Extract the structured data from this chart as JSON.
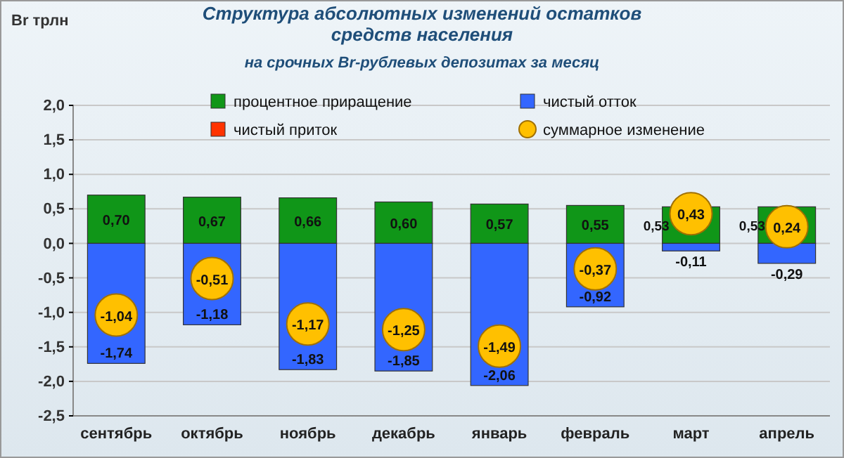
{
  "chart_data": {
    "type": "bar",
    "title": "Структура абсолютных изменений остатков средств населения",
    "subtitle": "на срочных Br-рублевых депозитах за месяц",
    "ylabel": "Br трлн",
    "categories": [
      "сентябрь",
      "октябрь",
      "ноябрь",
      "декабрь",
      "январь",
      "февраль",
      "март",
      "апрель"
    ],
    "stacked": true,
    "grid": "y",
    "legend": "top",
    "ylim": [
      -2.5,
      2.0
    ],
    "yticks": [
      {
        "value": -2.5,
        "label": "-2,5"
      },
      {
        "value": -2,
        "label": "-2,0"
      },
      {
        "value": -1.5,
        "label": "-1,5"
      },
      {
        "value": -1,
        "label": "-1,0"
      },
      {
        "value": -0.5,
        "label": "-0,5"
      },
      {
        "value": 0,
        "label": "0,0"
      },
      {
        "value": 0.5,
        "label": "0,5"
      },
      {
        "value": 1,
        "label": "1,0"
      },
      {
        "value": 1.5,
        "label": "1,5"
      },
      {
        "value": 2,
        "label": "2,0"
      }
    ],
    "series": [
      {
        "name": "процентное приращение",
        "color": "#109618",
        "values": [
          0.7,
          0.67,
          0.66,
          0.6,
          0.57,
          0.55,
          0.53,
          0.53
        ],
        "value_labels": [
          "0,70",
          "0,67",
          "0,66",
          "0,60",
          "0,57",
          "0,55",
          "0,53",
          "0,53"
        ]
      },
      {
        "name": "чистый отток",
        "color": "#3366ff",
        "values": [
          -1.74,
          -1.18,
          -1.83,
          -1.85,
          -2.06,
          -0.92,
          -0.11,
          -0.29
        ],
        "value_labels": [
          "-1,74",
          "-1,18",
          "-1,83",
          "-1,85",
          "-2,06",
          "-0,92",
          "-0,11",
          "-0,29"
        ]
      },
      {
        "name": "чистый приток",
        "color": "#ff3300",
        "values": [
          null,
          null,
          null,
          null,
          null,
          null,
          null,
          null
        ]
      },
      {
        "name": "суммарное изменение",
        "type": "scatter",
        "marker": "circle",
        "color": "#ffc000",
        "x": [
          "сентябрь",
          "октябрь",
          "ноябрь",
          "декабрь",
          "январь",
          "февраль",
          "март",
          "апрель"
        ],
        "values": [
          -1.04,
          -0.51,
          -1.17,
          -1.25,
          -1.49,
          -0.37,
          0.43,
          0.24
        ],
        "value_labels": [
          "-1,04",
          "-0,51",
          "-1,17",
          "-1,25",
          "-1,49",
          "-0,37",
          "0,43",
          "0,24"
        ]
      }
    ]
  }
}
